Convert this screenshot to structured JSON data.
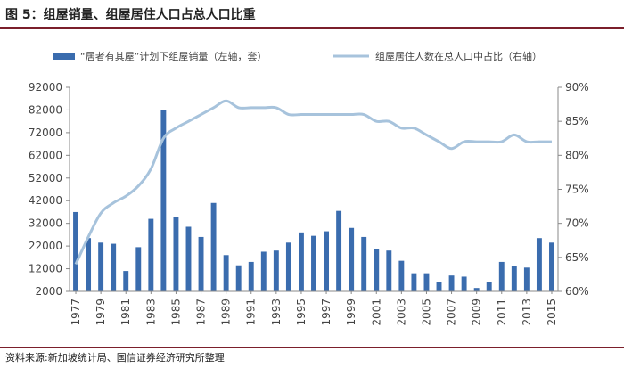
{
  "title": "图 5：组屋销量、组屋居住人口占总人口比重",
  "source": "资料来源:新加坡统计局、国信证券经济研究所整理",
  "chart_data": {
    "type": "bar+line",
    "legend_position": "top",
    "colors": {
      "bar": "#3a6cae",
      "line": "#a7c3dc",
      "axis": "#888888",
      "text": "#444444"
    },
    "years": [
      1977,
      1978,
      1979,
      1980,
      1981,
      1982,
      1983,
      1984,
      1985,
      1986,
      1987,
      1988,
      1989,
      1990,
      1991,
      1992,
      1993,
      1994,
      1995,
      1996,
      1997,
      1998,
      1999,
      2000,
      2001,
      2002,
      2003,
      2004,
      2005,
      2006,
      2007,
      2008,
      2009,
      2010,
      2011,
      2012,
      2013,
      2014,
      2015
    ],
    "x_tick_labels": [
      "1977",
      "1979",
      "1981",
      "1983",
      "1985",
      "1987",
      "1989",
      "1991",
      "1993",
      "1995",
      "1997",
      "1999",
      "2001",
      "2003",
      "2005",
      "2007",
      "2009",
      "2011",
      "2013",
      "2015"
    ],
    "series": [
      {
        "name": "“居者有其屋”计划下组屋销量（左轴，套）",
        "type": "bar",
        "axis": "left",
        "values": [
          37000,
          25500,
          23500,
          23000,
          11000,
          21500,
          34000,
          82000,
          35000,
          30500,
          26000,
          41000,
          18000,
          13500,
          15000,
          19500,
          20000,
          23500,
          28000,
          26500,
          28500,
          37500,
          30000,
          26000,
          20500,
          20000,
          15500,
          10000,
          10000,
          6000,
          9000,
          8500,
          3500,
          6000,
          15000,
          13000,
          12500,
          25500,
          23500
        ]
      },
      {
        "name": "组屋居住人数在总人口中占比（右轴）",
        "type": "line",
        "axis": "right",
        "values": [
          64.0,
          68.0,
          71.5,
          73.0,
          74.0,
          75.5,
          78.0,
          82.5,
          84.0,
          85.0,
          86.0,
          87.0,
          88.0,
          87.0,
          87.0,
          87.0,
          87.0,
          86.0,
          86.0,
          86.0,
          86.0,
          86.0,
          86.0,
          86.0,
          85.0,
          85.0,
          84.0,
          84.0,
          83.0,
          82.0,
          81.0,
          82.0,
          82.0,
          82.0,
          82.0,
          83.0,
          82.0,
          82.0,
          82.0
        ]
      }
    ],
    "left_axis": {
      "min": 2000,
      "max": 92000,
      "ticks": [
        "2000",
        "12000",
        "22000",
        "32000",
        "42000",
        "52000",
        "62000",
        "72000",
        "82000",
        "92000"
      ]
    },
    "right_axis": {
      "min": 60,
      "max": 90,
      "ticks": [
        "60%",
        "65%",
        "70%",
        "75%",
        "80%",
        "85%",
        "90%"
      ]
    }
  }
}
